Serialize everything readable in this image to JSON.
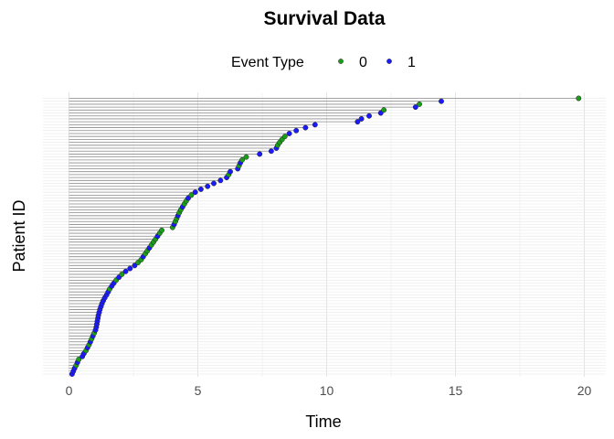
{
  "chart_data": {
    "type": "scatter",
    "title": "Survival Data",
    "xlabel": "Time",
    "ylabel": "Patient ID",
    "xlim": [
      0,
      20.8
    ],
    "x_ticks": [
      "0",
      "5",
      "10",
      "15",
      "20"
    ],
    "y_tick_labels": "none",
    "grid": true,
    "legend": {
      "title": "Event Type",
      "position": "top",
      "entries": [
        {
          "label": "0",
          "color": "#1a9e1a"
        },
        {
          "label": "1",
          "color": "#1a1aff"
        }
      ]
    },
    "series": [
      {
        "name": "0",
        "color": "#1a9e1a"
      },
      {
        "name": "1",
        "color": "#1a1aff"
      }
    ],
    "points": [
      {
        "x": 0.12,
        "event": 1
      },
      {
        "x": 0.17,
        "event": 1
      },
      {
        "x": 0.22,
        "event": 1
      },
      {
        "x": 0.28,
        "event": 0
      },
      {
        "x": 0.33,
        "event": 1
      },
      {
        "x": 0.38,
        "event": 0
      },
      {
        "x": 0.52,
        "event": 1
      },
      {
        "x": 0.58,
        "event": 1
      },
      {
        "x": 0.66,
        "event": 0
      },
      {
        "x": 0.72,
        "event": 1
      },
      {
        "x": 0.78,
        "event": 0
      },
      {
        "x": 0.83,
        "event": 1
      },
      {
        "x": 0.88,
        "event": 0
      },
      {
        "x": 0.93,
        "event": 1
      },
      {
        "x": 0.98,
        "event": 0
      },
      {
        "x": 1.03,
        "event": 1
      },
      {
        "x": 1.06,
        "event": 1
      },
      {
        "x": 1.08,
        "event": 1
      },
      {
        "x": 1.1,
        "event": 1
      },
      {
        "x": 1.12,
        "event": 1
      },
      {
        "x": 1.14,
        "event": 1
      },
      {
        "x": 1.17,
        "event": 1
      },
      {
        "x": 1.2,
        "event": 1
      },
      {
        "x": 1.24,
        "event": 1
      },
      {
        "x": 1.28,
        "event": 1
      },
      {
        "x": 1.33,
        "event": 1
      },
      {
        "x": 1.39,
        "event": 1
      },
      {
        "x": 1.46,
        "event": 1
      },
      {
        "x": 1.52,
        "event": 1
      },
      {
        "x": 1.58,
        "event": 0
      },
      {
        "x": 1.66,
        "event": 1
      },
      {
        "x": 1.74,
        "event": 1
      },
      {
        "x": 1.83,
        "event": 0
      },
      {
        "x": 1.94,
        "event": 1
      },
      {
        "x": 2.05,
        "event": 0
      },
      {
        "x": 2.2,
        "event": 1
      },
      {
        "x": 2.37,
        "event": 1
      },
      {
        "x": 2.55,
        "event": 1
      },
      {
        "x": 2.68,
        "event": 0
      },
      {
        "x": 2.8,
        "event": 0
      },
      {
        "x": 2.88,
        "event": 1
      },
      {
        "x": 2.96,
        "event": 0
      },
      {
        "x": 3.04,
        "event": 0
      },
      {
        "x": 3.12,
        "event": 1
      },
      {
        "x": 3.2,
        "event": 0
      },
      {
        "x": 3.28,
        "event": 0
      },
      {
        "x": 3.36,
        "event": 0
      },
      {
        "x": 3.44,
        "event": 1
      },
      {
        "x": 3.52,
        "event": 0
      },
      {
        "x": 3.6,
        "event": 0
      },
      {
        "x": 4.02,
        "event": 0
      },
      {
        "x": 4.08,
        "event": 1
      },
      {
        "x": 4.13,
        "event": 0
      },
      {
        "x": 4.18,
        "event": 0
      },
      {
        "x": 4.23,
        "event": 1
      },
      {
        "x": 4.28,
        "event": 0
      },
      {
        "x": 4.34,
        "event": 0
      },
      {
        "x": 4.41,
        "event": 1
      },
      {
        "x": 4.48,
        "event": 0
      },
      {
        "x": 4.55,
        "event": 0
      },
      {
        "x": 4.63,
        "event": 1
      },
      {
        "x": 4.75,
        "event": 0
      },
      {
        "x": 4.9,
        "event": 1
      },
      {
        "x": 5.12,
        "event": 1
      },
      {
        "x": 5.38,
        "event": 1
      },
      {
        "x": 5.62,
        "event": 1
      },
      {
        "x": 5.88,
        "event": 1
      },
      {
        "x": 6.12,
        "event": 1
      },
      {
        "x": 6.2,
        "event": 0
      },
      {
        "x": 6.26,
        "event": 1
      },
      {
        "x": 6.55,
        "event": 1
      },
      {
        "x": 6.6,
        "event": 0
      },
      {
        "x": 6.65,
        "event": 1
      },
      {
        "x": 6.72,
        "event": 0
      },
      {
        "x": 6.88,
        "event": 0
      },
      {
        "x": 7.4,
        "event": 1
      },
      {
        "x": 7.85,
        "event": 1
      },
      {
        "x": 8.05,
        "event": 1
      },
      {
        "x": 8.1,
        "event": 0
      },
      {
        "x": 8.18,
        "event": 0
      },
      {
        "x": 8.27,
        "event": 0
      },
      {
        "x": 8.38,
        "event": 0
      },
      {
        "x": 8.55,
        "event": 1
      },
      {
        "x": 8.82,
        "event": 1
      },
      {
        "x": 9.18,
        "event": 1
      },
      {
        "x": 9.55,
        "event": 1
      },
      {
        "x": 11.2,
        "event": 1
      },
      {
        "x": 11.35,
        "event": 1
      },
      {
        "x": 11.65,
        "event": 1
      },
      {
        "x": 12.1,
        "event": 1
      },
      {
        "x": 12.22,
        "event": 0
      },
      {
        "x": 13.45,
        "event": 1
      },
      {
        "x": 13.6,
        "event": 0
      },
      {
        "x": 14.45,
        "event": 1
      },
      {
        "x": 19.78,
        "event": 0
      }
    ]
  }
}
